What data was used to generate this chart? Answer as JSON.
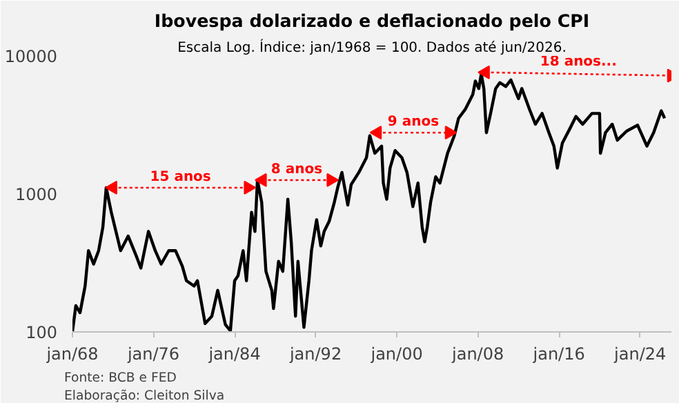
{
  "chart_data": {
    "type": "line",
    "title": "Ibovespa dolarizado e deflacionado pelo CPI",
    "subtitle": "Escala Log. Índice: jan/1968 = 100. Dados até jun/2026.",
    "log": "y",
    "grid": false,
    "xlim": [
      "1968-01",
      "2027-02"
    ],
    "ylim": [
      100,
      10000
    ],
    "xticks": [
      {
        "value": "1968-01",
        "label": "jan/68"
      },
      {
        "value": "1976-01",
        "label": "jan/76"
      },
      {
        "value": "1984-01",
        "label": "jan/84"
      },
      {
        "value": "1992-01",
        "label": "jan/92"
      },
      {
        "value": "2000-01",
        "label": "jan/00"
      },
      {
        "value": "2008-01",
        "label": "jan/08"
      },
      {
        "value": "2016-01",
        "label": "jan/16"
      },
      {
        "value": "2024-01",
        "label": "jan/24"
      }
    ],
    "yticks": [
      100,
      1000,
      10000
    ],
    "series": [
      {
        "color": "#000000",
        "line_style": "solid",
        "marker": "none",
        "x": [
          "1968-01",
          "1968-05",
          "1968-10",
          "1969-04",
          "1969-08",
          "1970-02",
          "1970-08",
          "1971-01",
          "1971-05",
          "1971-11",
          "1972-10",
          "1973-07",
          "1974-05",
          "1974-10",
          "1975-07",
          "1976-03",
          "1976-10",
          "1977-07",
          "1978-03",
          "1978-11",
          "1979-04",
          "1980-01",
          "1980-05",
          "1981-02",
          "1981-10",
          "1982-05",
          "1983-02",
          "1983-08",
          "1984-01",
          "1984-05",
          "1984-11",
          "1985-03",
          "1985-09",
          "1986-01",
          "1986-04",
          "1986-09",
          "1987-02",
          "1987-09",
          "1987-11",
          "1988-05",
          "1988-10",
          "1989-04",
          "1989-08",
          "1990-01",
          "1990-04",
          "1990-11",
          "1991-05",
          "1991-08",
          "1992-02",
          "1992-07",
          "1992-11",
          "1993-05",
          "1993-11",
          "1994-03",
          "1994-08",
          "1995-03",
          "1995-07",
          "1996-04",
          "1997-01",
          "1997-05",
          "1997-11",
          "1998-07",
          "1998-09",
          "1999-01",
          "1999-05",
          "1999-11",
          "2000-07",
          "2001-01",
          "2001-08",
          "2002-02",
          "2002-07",
          "2002-10",
          "2003-01",
          "2003-05",
          "2003-11",
          "2004-04",
          "2005-01",
          "2005-09",
          "2006-02",
          "2006-10",
          "2007-07",
          "2007-10",
          "2008-02",
          "2008-05",
          "2008-08",
          "2008-11",
          "2009-04",
          "2009-10",
          "2010-03",
          "2010-10",
          "2011-04",
          "2012-01",
          "2012-05",
          "2013-02",
          "2013-09",
          "2014-05",
          "2015-01",
          "2015-07",
          "2015-11",
          "2016-05",
          "2017-02",
          "2017-09",
          "2018-05",
          "2019-04",
          "2020-01",
          "2020-02",
          "2020-08",
          "2021-04",
          "2021-10",
          "2022-09",
          "2023-10",
          "2024-09",
          "2025-05",
          "2026-02",
          "2026-06"
        ],
        "values": [
          100,
          155,
          138,
          215,
          388,
          310,
          388,
          575,
          1110,
          735,
          388,
          495,
          350,
          290,
          535,
          388,
          310,
          388,
          388,
          300,
          235,
          215,
          235,
          115,
          130,
          200,
          113,
          102,
          235,
          255,
          388,
          235,
          735,
          535,
          1260,
          870,
          275,
          200,
          148,
          325,
          275,
          915,
          450,
          130,
          325,
          108,
          235,
          388,
          650,
          420,
          535,
          635,
          870,
          1110,
          1430,
          830,
          1170,
          1430,
          1830,
          2640,
          1970,
          2220,
          1200,
          915,
          1540,
          2060,
          1830,
          1430,
          810,
          1200,
          575,
          450,
          575,
          870,
          1330,
          1200,
          1970,
          2640,
          3530,
          4100,
          5270,
          6570,
          5800,
          7400,
          5800,
          2780,
          3830,
          5800,
          6400,
          6000,
          6700,
          4900,
          5800,
          4100,
          3200,
          3830,
          2780,
          2220,
          1540,
          2340,
          2990,
          3640,
          3200,
          3830,
          3830,
          1970,
          2780,
          3200,
          2450,
          2850,
          3150,
          2220,
          2780,
          4000,
          3530
        ]
      },
      {
        "name": "15 anos",
        "color": "#ff0000",
        "line_style": "dotted",
        "marker": "triangle",
        "x": [
          "1972-01",
          "1985-05"
        ],
        "values": [
          1110,
          1110
        ]
      },
      {
        "name": "8 anos",
        "color": "#ff0000",
        "line_style": "dotted",
        "marker": "triangle",
        "x": [
          "1986-10",
          "1993-07"
        ],
        "values": [
          1260,
          1260
        ]
      },
      {
        "name": "9 anos",
        "color": "#ff0000",
        "line_style": "dotted",
        "marker": "triangle",
        "x": [
          "1998-02",
          "2005-03"
        ],
        "values": [
          2780,
          2780
        ]
      },
      {
        "name": "18 anos...",
        "color": "#ff0000",
        "line_style": "dotted",
        "marker": "triangle",
        "x": [
          "2008-10",
          "2027-02"
        ],
        "values": [
          7600,
          7200
        ]
      }
    ],
    "annotations": [
      "Fonte: BCB e FED",
      "Elaboração: Cleiton Silva"
    ]
  }
}
